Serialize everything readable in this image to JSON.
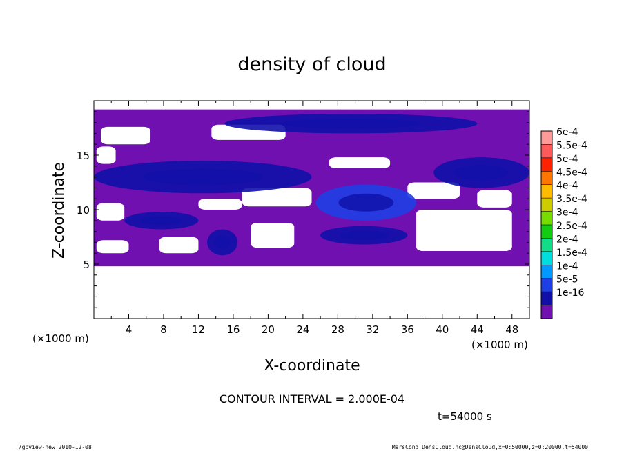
{
  "chart_data": {
    "type": "heatmap",
    "title": "density of cloud",
    "xlabel": "X-coordinate",
    "ylabel": "Z-coordinate",
    "x_unit": "(×1000 m)",
    "y_unit": "(×1000 m)",
    "xlim": [
      0,
      50
    ],
    "ylim": [
      0,
      20
    ],
    "x_ticks": [
      "4",
      "8",
      "12",
      "16",
      "20",
      "24",
      "28",
      "32",
      "36",
      "40",
      "44",
      "48"
    ],
    "y_ticks": [
      "5",
      "10",
      "15"
    ],
    "colorbar": {
      "levels": [
        "6e-4",
        "5.5e-4",
        "5e-4",
        "4.5e-4",
        "4e-4",
        "3.5e-4",
        "3e-4",
        "2.5e-4",
        "2e-4",
        "1.5e-4",
        "1e-4",
        "5e-5",
        "1e-16"
      ],
      "colors": [
        "#ff9a9a",
        "#ff5a5a",
        "#ff2200",
        "#ff7700",
        "#ffbb00",
        "#cccc00",
        "#77dd00",
        "#11cc11",
        "#11dd88",
        "#00dddd",
        "#0099ff",
        "#1f3fe6",
        "#1010a8",
        "#7010b0"
      ]
    },
    "contour_interval_text": "CONTOUR INTERVAL = 2.000E-04",
    "time_text": "t=54000 s",
    "footer_left": "./gpview-new   2010-12-08",
    "footer_right": "MarsCond_DensCloud.nc@DensCloud,x=0:50000,z=0:20000,t=54000",
    "regions": {
      "cloud_layer_z": [
        4.8,
        19.2
      ],
      "clear_gaps": [
        {
          "x": [
            0.8,
            6.5
          ],
          "z": [
            16.0,
            17.6
          ]
        },
        {
          "x": [
            13.5,
            22.0
          ],
          "z": [
            16.4,
            17.8
          ]
        },
        {
          "x": [
            0.3,
            2.5
          ],
          "z": [
            14.2,
            15.8
          ]
        },
        {
          "x": [
            0.3,
            3.5
          ],
          "z": [
            9.0,
            10.6
          ]
        },
        {
          "x": [
            17.0,
            25.0
          ],
          "z": [
            10.3,
            12.0
          ]
        },
        {
          "x": [
            12.0,
            17.0
          ],
          "z": [
            10.0,
            11.0
          ]
        },
        {
          "x": [
            37.0,
            48.0
          ],
          "z": [
            6.2,
            10.0
          ]
        },
        {
          "x": [
            44.0,
            48.0
          ],
          "z": [
            10.2,
            11.8
          ]
        },
        {
          "x": [
            18.0,
            23.0
          ],
          "z": [
            6.5,
            8.8
          ]
        },
        {
          "x": [
            0.3,
            4.0
          ],
          "z": [
            6.0,
            7.2
          ]
        },
        {
          "x": [
            7.5,
            12.0
          ],
          "z": [
            6.0,
            7.5
          ]
        },
        {
          "x": [
            36.0,
            42.0
          ],
          "z": [
            11.0,
            12.5
          ]
        },
        {
          "x": [
            27.0,
            34.0
          ],
          "z": [
            13.8,
            14.8
          ]
        }
      ],
      "high_density_patches": [
        {
          "x": [
            15.0,
            44.0
          ],
          "z": [
            17.0,
            18.8
          ],
          "level": "5e-5"
        },
        {
          "x": [
            0.0,
            25.0
          ],
          "z": [
            11.5,
            14.5
          ],
          "level": "5e-5"
        },
        {
          "x": [
            25.5,
            37.0
          ],
          "z": [
            9.0,
            12.3
          ],
          "level": "1e-4"
        },
        {
          "x": [
            39.0,
            50.0
          ],
          "z": [
            12.0,
            14.8
          ],
          "level": "5e-5"
        },
        {
          "x": [
            3.5,
            12.0
          ],
          "z": [
            8.2,
            9.8
          ],
          "level": "5e-5"
        },
        {
          "x": [
            13.0,
            16.5
          ],
          "z": [
            5.8,
            8.2
          ],
          "level": "5e-5"
        },
        {
          "x": [
            26.0,
            36.0
          ],
          "z": [
            6.8,
            8.5
          ],
          "level": "5e-5"
        }
      ]
    }
  }
}
